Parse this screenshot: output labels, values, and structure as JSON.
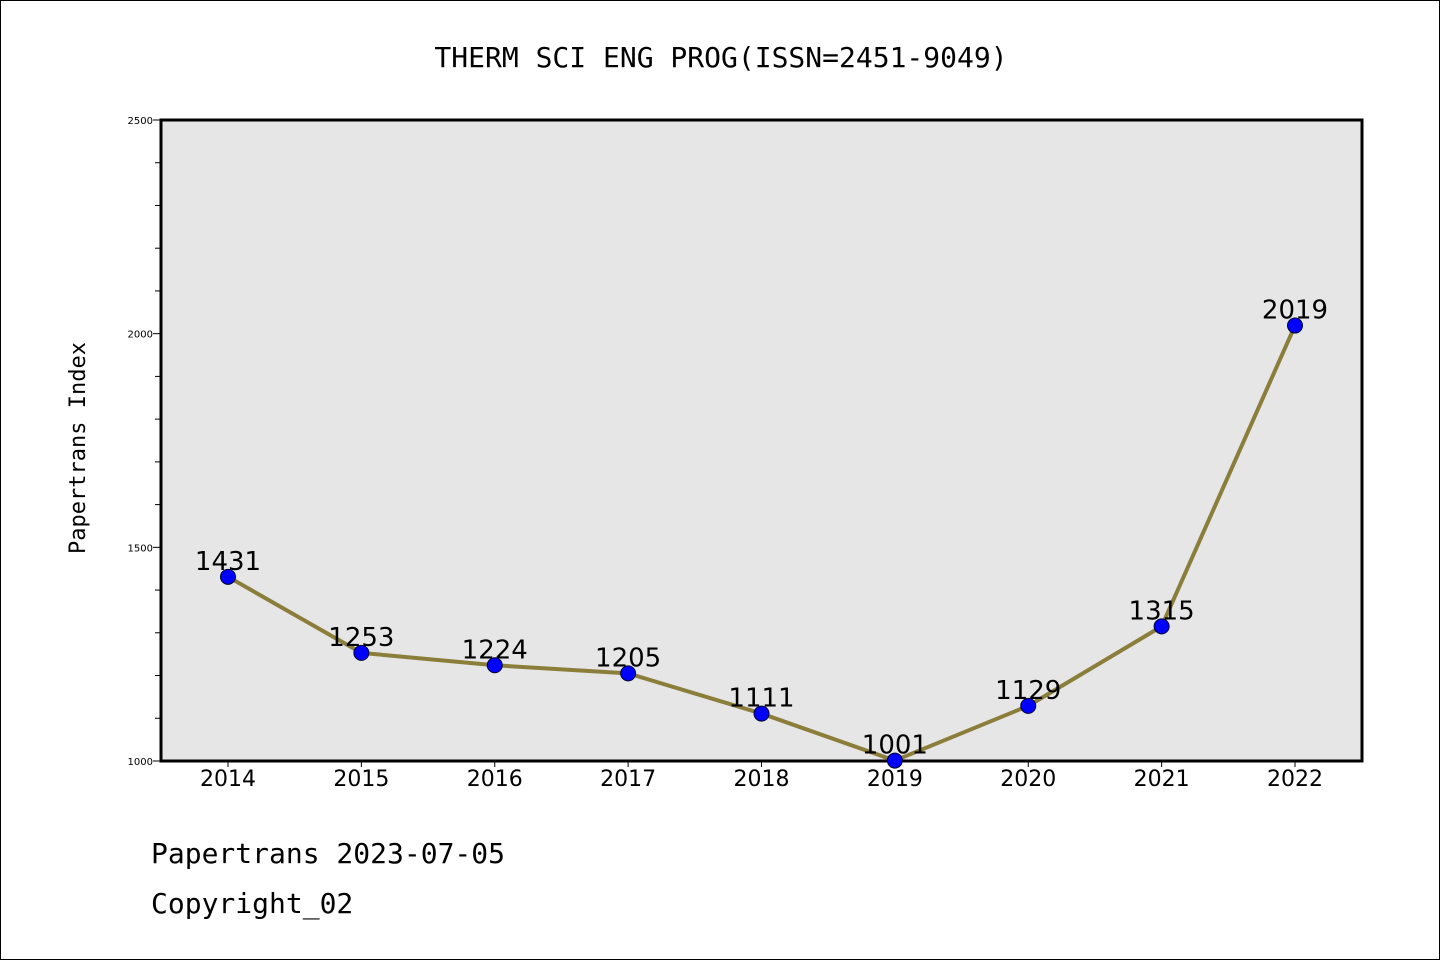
{
  "chart_data": {
    "type": "line",
    "title": "THERM SCI ENG PROG(ISSN=2451-9049)",
    "xlabel": "",
    "ylabel": "Papertrans Index",
    "categories": [
      "2014",
      "2015",
      "2016",
      "2017",
      "2018",
      "2019",
      "2020",
      "2021",
      "2022"
    ],
    "series": [
      {
        "values": [
          1431,
          1253,
          1224,
          1205,
          1111,
          1001,
          1129,
          1315,
          2019
        ]
      }
    ],
    "data_labels": [
      "1431",
      "1253",
      "1224",
      "1205",
      "1111",
      "1001",
      "1129",
      "1315",
      "2019"
    ],
    "ylim": [
      1000,
      2500
    ],
    "y_ticks": [
      "1000",
      "1500",
      "2000",
      "2500"
    ],
    "grid": false,
    "legend": "none",
    "colors": {
      "line": "#8B7D3A",
      "marker": "#0000FF",
      "plot_background": "#E6E6E6"
    }
  },
  "footer": {
    "source": "Papertrans 2023-07-05",
    "copyright": "Copyright_02"
  }
}
